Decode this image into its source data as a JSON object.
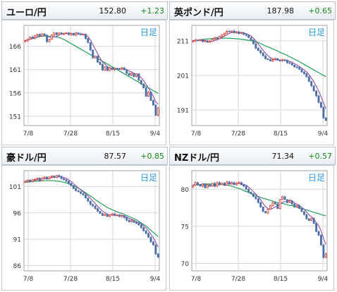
{
  "panels": [
    {
      "name": "ユーロ/円",
      "price": "152.80",
      "change": "+1.23",
      "period": "日足",
      "chart_data": {
        "type": "candlestick",
        "x_ticks": [
          "7/8",
          "7/28",
          "8/15",
          "9/4"
        ],
        "y_ticks": [
          166,
          161,
          156,
          151
        ],
        "ylim": [
          149,
          170.5
        ],
        "close": [
          167.2,
          167.5,
          168.0,
          167.8,
          168.3,
          168.6,
          168.2,
          168.7,
          168.4,
          167.0,
          167.5,
          168.4,
          168.9,
          168.5,
          168.9,
          168.6,
          168.8,
          168.9,
          168.5,
          168.8,
          168.4,
          168.9,
          168.7,
          168.5,
          168.6,
          167.7,
          166.8,
          165.2,
          163.5,
          163.9,
          162.6,
          162.1,
          160.9,
          161.6,
          160.8,
          161.4,
          161.0,
          161.3,
          161.2,
          161.1,
          161.4,
          161.0,
          160.2,
          159.8,
          160.2,
          159.5,
          160.1,
          158.7,
          157.9,
          157.1,
          155.3,
          156.2,
          154.4,
          153.4,
          151.2,
          152.8
        ],
        "ma": [
          167.2,
          167.4,
          167.6,
          167.8,
          167.9,
          168.0,
          168.1,
          168.2,
          168.2,
          168.2,
          168.2,
          168.1,
          168.1,
          168.0,
          167.9,
          167.7,
          167.5,
          167.2,
          166.9,
          166.6,
          166.3,
          166.0,
          165.7,
          165.4,
          165.1,
          164.8,
          164.5,
          164.2,
          164.0,
          163.7,
          163.4,
          163.1,
          162.8,
          162.5,
          162.2,
          161.9,
          161.6,
          161.3,
          161.0,
          160.7,
          160.4,
          160.1,
          159.8,
          159.5,
          159.2,
          158.9,
          158.6,
          158.3,
          158.0,
          157.7,
          157.4,
          157.1,
          156.8,
          156.5,
          156.2,
          155.9
        ]
      }
    },
    {
      "name": "英ポンド/円",
      "price": "187.98",
      "change": "+0.65",
      "period": "日足",
      "chart_data": {
        "type": "candlestick",
        "x_ticks": [
          "7/8",
          "7/28",
          "8/15",
          "9/4"
        ],
        "y_ticks": [
          211,
          201,
          191
        ],
        "ylim": [
          186.5,
          215.5
        ],
        "close": [
          211.0,
          211.3,
          211.1,
          211.4,
          210.8,
          211.0,
          210.6,
          210.9,
          211.5,
          212.0,
          211.6,
          212.3,
          212.8,
          213.2,
          213.8,
          213.6,
          213.9,
          213.3,
          213.6,
          213.1,
          213.4,
          212.9,
          212.6,
          212.0,
          211.3,
          210.2,
          208.9,
          208.2,
          207.5,
          206.7,
          205.8,
          205.6,
          205.2,
          205.6,
          205.9,
          205.4,
          205.3,
          205.5,
          205.4,
          204.7,
          204.5,
          204.0,
          203.5,
          203.3,
          202.8,
          202.0,
          201.5,
          200.6,
          199.3,
          198.0,
          196.5,
          195.1,
          193.2,
          191.8,
          188.7,
          188.0
        ],
        "ma": [
          211.0,
          211.1,
          211.2,
          211.3,
          211.4,
          211.5,
          211.6,
          211.6,
          211.7,
          211.7,
          211.8,
          211.8,
          211.8,
          211.8,
          211.8,
          211.8,
          211.7,
          211.7,
          211.6,
          211.6,
          211.5,
          211.4,
          211.3,
          211.2,
          211.1,
          210.9,
          210.7,
          210.5,
          210.2,
          209.9,
          209.6,
          209.3,
          209.0,
          208.7,
          208.4,
          208.1,
          207.7,
          207.4,
          207.1,
          206.8,
          206.4,
          206.1,
          205.7,
          205.4,
          205.0,
          204.6,
          204.2,
          203.8,
          203.4,
          203.0,
          202.6,
          202.2,
          201.8,
          201.4,
          201.0,
          200.7
        ]
      }
    },
    {
      "name": "豪ドル/円",
      "price": "87.57",
      "change": "+0.85",
      "period": "日足",
      "chart_data": {
        "type": "candlestick",
        "x_ticks": [
          "7/8",
          "7/28",
          "8/15",
          "9/4"
        ],
        "y_ticks": [
          101,
          96,
          91,
          86
        ],
        "ylim": [
          85,
          104
        ],
        "close": [
          102.0,
          102.2,
          101.9,
          102.3,
          102.4,
          102.6,
          102.1,
          102.6,
          102.8,
          102.4,
          102.8,
          103.0,
          102.7,
          103.1,
          102.9,
          102.5,
          102.3,
          102.0,
          101.6,
          101.2,
          100.6,
          100.2,
          100.0,
          99.7,
          99.4,
          98.8,
          98.2,
          97.6,
          97.3,
          96.8,
          96.3,
          95.9,
          95.5,
          95.7,
          95.3,
          95.6,
          95.8,
          95.5,
          95.6,
          95.3,
          95.5,
          95.1,
          94.6,
          94.3,
          94.6,
          94.2,
          94.0,
          93.7,
          93.2,
          92.6,
          92.1,
          91.4,
          90.5,
          89.9,
          88.2,
          87.6
        ],
        "ma": [
          101.8,
          101.8,
          101.9,
          101.9,
          102.0,
          102.0,
          102.0,
          102.1,
          102.1,
          102.1,
          102.1,
          102.1,
          102.1,
          102.0,
          102.0,
          101.9,
          101.8,
          101.7,
          101.5,
          101.3,
          101.1,
          100.9,
          100.7,
          100.4,
          100.1,
          99.8,
          99.5,
          99.2,
          98.9,
          98.5,
          98.2,
          97.9,
          97.6,
          97.3,
          97.0,
          96.8,
          96.6,
          96.4,
          96.2,
          96.0,
          95.9,
          95.7,
          95.5,
          95.3,
          95.1,
          94.9,
          94.7,
          94.4,
          94.1,
          93.8,
          93.5,
          93.1,
          92.7,
          92.3,
          91.9,
          91.5
        ]
      }
    },
    {
      "name": "NZドル/円",
      "price": "71.34",
      "change": "+0.57",
      "period": "日足",
      "chart_data": {
        "type": "candlestick",
        "x_ticks": [
          "7/8",
          "7/28",
          "8/15",
          "9/4"
        ],
        "y_ticks": [
          80,
          75,
          70
        ],
        "ylim": [
          69,
          82.5
        ],
        "close": [
          80.5,
          80.9,
          80.6,
          80.4,
          80.7,
          80.2,
          80.6,
          80.4,
          80.8,
          80.4,
          80.9,
          80.6,
          80.8,
          80.5,
          81.0,
          80.7,
          80.9,
          80.6,
          80.8,
          80.9,
          80.6,
          80.4,
          80.0,
          79.6,
          79.4,
          79.0,
          78.7,
          78.2,
          77.6,
          77.0,
          76.8,
          77.3,
          77.8,
          78.2,
          78.0,
          77.4,
          78.6,
          79.0,
          78.6,
          78.2,
          78.4,
          78.0,
          77.6,
          77.8,
          77.4,
          77.0,
          76.6,
          76.0,
          75.8,
          76.1,
          75.4,
          74.3,
          73.8,
          72.5,
          70.8,
          71.3
        ],
        "ma": [
          80.6,
          80.6,
          80.6,
          80.6,
          80.7,
          80.7,
          80.7,
          80.7,
          80.7,
          80.7,
          80.7,
          80.7,
          80.7,
          80.6,
          80.6,
          80.5,
          80.4,
          80.3,
          80.2,
          80.1,
          80.0,
          79.8,
          79.7,
          79.6,
          79.4,
          79.3,
          79.2,
          79.0,
          78.9,
          78.8,
          78.7,
          78.6,
          78.5,
          78.4,
          78.3,
          78.2,
          78.1,
          78.1,
          78.0,
          77.9,
          77.8,
          77.8,
          77.7,
          77.6,
          77.5,
          77.4,
          77.3,
          77.2,
          77.1,
          77.0,
          76.9,
          76.8,
          76.7,
          76.6,
          76.5,
          76.4
        ]
      }
    }
  ],
  "colors": {
    "up": "#d9352a",
    "down": "#4a6fa5",
    "ma_fast": "#8a3aa0",
    "ma_slow": "#22a05a",
    "period_label": "#2e9be0",
    "grid": "#d7d7d7"
  }
}
